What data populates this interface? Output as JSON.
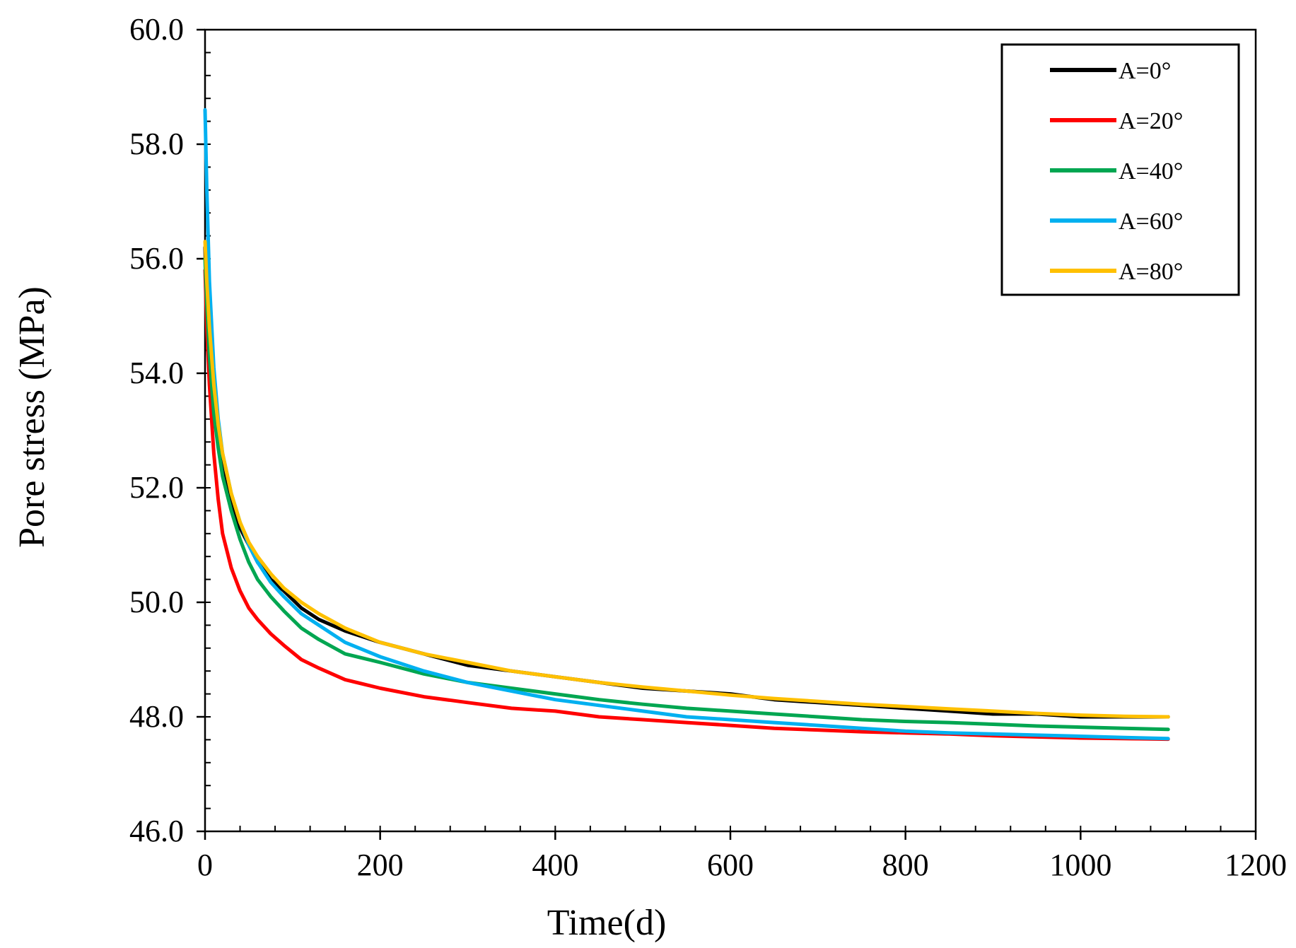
{
  "chart_data": {
    "type": "line",
    "xlabel": "Time(d)",
    "ylabel": "Pore stress (MPa)",
    "xlim": [
      0,
      1200
    ],
    "ylim": [
      46.0,
      60.0
    ],
    "x_ticks": [
      0,
      200,
      400,
      600,
      800,
      1000,
      1200
    ],
    "x_tick_labels": [
      "0",
      "200",
      "400",
      "600",
      "800",
      "1000",
      "1200"
    ],
    "y_ticks": [
      46,
      48,
      50,
      52,
      54,
      56,
      58,
      60
    ],
    "y_tick_labels": [
      "46.0",
      "48.0",
      "50.0",
      "52.0",
      "54.0",
      "56.0",
      "58.0",
      "60.0"
    ],
    "x_minor_step": 40,
    "y_minor_step": 0.4,
    "grid": false,
    "legend_position": "top-right",
    "series": [
      {
        "name": "A=0°",
        "color": "#000000",
        "x": [
          0,
          2,
          5,
          10,
          15,
          20,
          30,
          40,
          50,
          60,
          75,
          90,
          110,
          130,
          160,
          200,
          250,
          300,
          350,
          400,
          450,
          500,
          550,
          600,
          650,
          700,
          750,
          800,
          850,
          900,
          950,
          1000,
          1050,
          1100
        ],
        "y": [
          56.2,
          55.0,
          54.0,
          53.3,
          52.8,
          52.3,
          51.7,
          51.3,
          51.0,
          50.7,
          50.4,
          50.2,
          49.9,
          49.7,
          49.5,
          49.3,
          49.1,
          48.9,
          48.8,
          48.7,
          48.6,
          48.5,
          48.45,
          48.4,
          48.3,
          48.25,
          48.2,
          48.15,
          48.1,
          48.05,
          48.05,
          48.0,
          48.0,
          48.0
        ]
      },
      {
        "name": "A=20°",
        "color": "#ff0000",
        "x": [
          0,
          2,
          5,
          10,
          15,
          20,
          30,
          40,
          50,
          60,
          75,
          90,
          110,
          130,
          160,
          200,
          250,
          300,
          350,
          400,
          450,
          500,
          550,
          600,
          650,
          700,
          750,
          800,
          850,
          900,
          950,
          1000,
          1050,
          1100
        ],
        "y": [
          55.8,
          54.8,
          53.8,
          52.6,
          51.8,
          51.2,
          50.6,
          50.2,
          49.9,
          49.7,
          49.45,
          49.25,
          49.0,
          48.85,
          48.65,
          48.5,
          48.35,
          48.25,
          48.15,
          48.1,
          48.0,
          47.95,
          47.9,
          47.85,
          47.8,
          47.77,
          47.74,
          47.72,
          47.7,
          47.67,
          47.65,
          47.63,
          47.62,
          47.61
        ]
      },
      {
        "name": "A=40°",
        "color": "#00a651",
        "x": [
          0,
          2,
          5,
          10,
          15,
          20,
          30,
          40,
          50,
          60,
          75,
          90,
          110,
          130,
          160,
          200,
          250,
          300,
          350,
          400,
          450,
          500,
          550,
          600,
          650,
          700,
          750,
          800,
          850,
          900,
          950,
          1000,
          1050,
          1100
        ],
        "y": [
          56.0,
          55.2,
          54.3,
          53.3,
          52.7,
          52.2,
          51.6,
          51.1,
          50.7,
          50.4,
          50.1,
          49.85,
          49.55,
          49.35,
          49.1,
          48.95,
          48.75,
          48.6,
          48.5,
          48.4,
          48.3,
          48.22,
          48.15,
          48.1,
          48.05,
          48.0,
          47.95,
          47.92,
          47.9,
          47.87,
          47.84,
          47.82,
          47.8,
          47.78
        ]
      },
      {
        "name": "A=60°",
        "color": "#00b0f0",
        "x": [
          0,
          2,
          5,
          10,
          15,
          20,
          30,
          40,
          50,
          60,
          75,
          90,
          110,
          130,
          160,
          200,
          250,
          300,
          350,
          400,
          450,
          500,
          550,
          600,
          650,
          700,
          750,
          800,
          850,
          900,
          950,
          1000,
          1050,
          1100
        ],
        "y": [
          58.6,
          57.2,
          55.6,
          54.1,
          53.2,
          52.6,
          51.9,
          51.4,
          51.0,
          50.7,
          50.35,
          50.1,
          49.8,
          49.6,
          49.3,
          49.05,
          48.8,
          48.6,
          48.45,
          48.3,
          48.2,
          48.1,
          48.0,
          47.95,
          47.9,
          47.85,
          47.8,
          47.75,
          47.72,
          47.7,
          47.68,
          47.66,
          47.64,
          47.62
        ]
      },
      {
        "name": "A=80°",
        "color": "#ffc000",
        "x": [
          0,
          2,
          5,
          10,
          15,
          20,
          30,
          40,
          50,
          60,
          75,
          90,
          110,
          130,
          160,
          200,
          250,
          300,
          350,
          400,
          450,
          500,
          550,
          600,
          650,
          700,
          750,
          800,
          850,
          900,
          950,
          1000,
          1050,
          1100
        ],
        "y": [
          56.3,
          55.6,
          54.8,
          53.8,
          53.1,
          52.6,
          51.9,
          51.4,
          51.05,
          50.8,
          50.5,
          50.25,
          50.0,
          49.8,
          49.55,
          49.3,
          49.1,
          48.95,
          48.8,
          48.7,
          48.6,
          48.52,
          48.45,
          48.38,
          48.32,
          48.27,
          48.22,
          48.18,
          48.14,
          48.1,
          48.06,
          48.03,
          48.01,
          48.0
        ]
      }
    ]
  }
}
